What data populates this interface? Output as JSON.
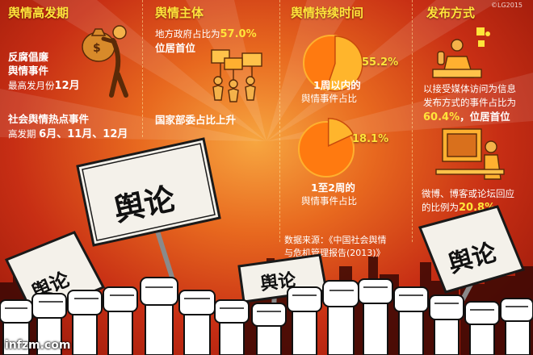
{
  "watermark": "©LG2015",
  "footer": {
    "site": "infzm.com"
  },
  "sections": {
    "peak": {
      "header": "舆情高发期",
      "item1_title": [
        "反腐倡廉",
        "舆情事件"
      ],
      "item1_detail": "最高发月份",
      "item1_value": "12月",
      "item2_title": "社会舆情热点事件",
      "item2_detail": "高发期",
      "item2_value": "6月、11月、12月"
    },
    "subject": {
      "header": "舆情主体",
      "line1_prefix": "地方政府占比为",
      "line1_value": "57.0%",
      "line2": "位居首位",
      "line3": "国家部委占比上升"
    },
    "duration": {
      "header": "舆情持续时间",
      "chart1_label": "55.2%",
      "chart1_caption": [
        "1周以内的",
        "舆情事件占比"
      ],
      "chart2_label": "18.1%",
      "chart2_caption": [
        "1至2周的",
        "舆情事件占比"
      ],
      "source": [
        "数据来源：《中国社会舆情",
        "与危机管理报告(2013)》"
      ]
    },
    "release": {
      "header": "发布方式",
      "text1": [
        "以接受媒体访问为信息",
        "发布方式的事件占比为"
      ],
      "text1_value": "60.4%",
      "text1_suffix": "，位居首位",
      "text2": "微博、博客或论坛回应",
      "text2_prefix": "的比例为",
      "text2_value": "20.8%"
    }
  },
  "signs": [
    "舆论",
    "舆论",
    "舆论",
    "舆论"
  ],
  "chart_data": [
    {
      "type": "pie",
      "labels": [
        "1周以内的舆情事件占比"
      ],
      "values": [
        55.2
      ]
    },
    {
      "type": "pie",
      "labels": [
        "1至2周的舆情事件占比"
      ],
      "values": [
        18.1
      ]
    }
  ],
  "colors": {
    "accent_yellow": "#ffe43a",
    "pie_fill": "#ff7a10",
    "pie_rim": "#ffb02e"
  }
}
